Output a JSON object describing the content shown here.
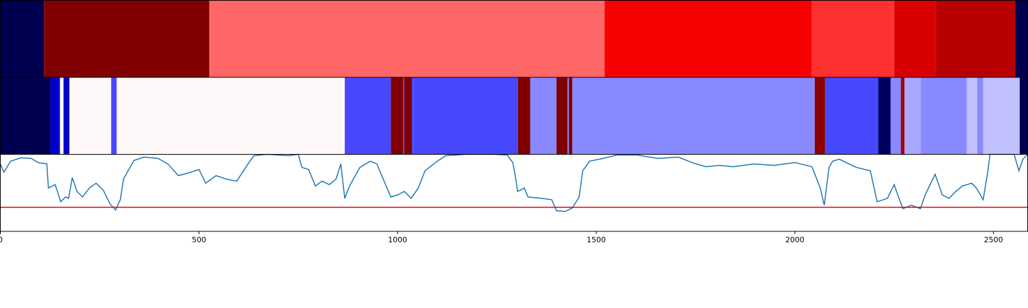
{
  "chart_data": {
    "type": "segmentation",
    "xlim": [
      0,
      2586
    ],
    "xticks": [
      0,
      500,
      1000,
      1500,
      2000,
      2500
    ],
    "bands": [
      {
        "bounds": [
          0,
          110,
          526,
          1521,
          2043,
          2250,
          2355,
          2555,
          2586
        ],
        "colors": [
          "#000050",
          "#800000",
          "#ff6666",
          "#f60000",
          "#ff3030",
          "#d80000",
          "#b80000",
          "#000050"
        ]
      },
      {
        "bounds": [
          0,
          126,
          150,
          159,
          174,
          279,
          293,
          867,
          983,
          1014,
          1017,
          1036,
          1040,
          1303,
          1334,
          1400,
          1428,
          1431,
          1440,
          2050,
          2076,
          2210,
          2241,
          2267,
          2276,
          2317,
          2433,
          2459,
          2474,
          2566,
          2586
        ],
        "colors": [
          "#000050",
          "#0000cc",
          "#fff8f8",
          "#0000cc",
          "#fff8f8",
          "#4848ff",
          "#fff8f8",
          "#4848ff",
          "#800000",
          "#4848ff",
          "#800000",
          "#4848ff",
          "#4848ff",
          "#800000",
          "#8888ff",
          "#800000",
          "#8888ff",
          "#800000",
          "#8888ff",
          "#8b0000",
          "#4848ff",
          "#000060",
          "#8888ff",
          "#a00000",
          "#a8a8ff",
          "#8888ff",
          "#c0c0ff",
          "#8888ff",
          "#c0c0ff",
          "#000050"
        ]
      }
    ],
    "ylim": [
      0,
      112
    ],
    "hline": 35,
    "hline_color": "#ee0000",
    "series": [
      {
        "color": "#1f77b4",
        "x": [
          0,
          9,
          26,
          52,
          78,
          95,
          117,
          121,
          138,
          152,
          164,
          172,
          181,
          193,
          207,
          224,
          241,
          259,
          276,
          290,
          302,
          310,
          336,
          362,
          397,
          422,
          448,
          474,
          500,
          517,
          543,
          569,
          595,
          621,
          638,
          672,
          724,
          750,
          759,
          776,
          793,
          810,
          828,
          845,
          857,
          867,
          879,
          905,
          931,
          948,
          966,
          983,
          1000,
          1017,
          1034,
          1052,
          1069,
          1095,
          1121,
          1172,
          1241,
          1276,
          1290,
          1297,
          1302,
          1319,
          1328,
          1362,
          1388,
          1400,
          1422,
          1440,
          1457,
          1466,
          1483,
          1517,
          1552,
          1603,
          1655,
          1707,
          1741,
          1776,
          1810,
          1845,
          1897,
          1948,
          2000,
          2043,
          2064,
          2074,
          2086,
          2095,
          2112,
          2129,
          2155,
          2190,
          2207,
          2233,
          2250,
          2259,
          2272,
          2293,
          2316,
          2328,
          2353,
          2371,
          2388,
          2405,
          2422,
          2445,
          2457,
          2474,
          2486,
          2491,
          2552,
          2564,
          2574,
          2586
        ],
        "values": [
          98,
          86,
          102,
          107,
          106,
          100,
          98,
          63,
          68,
          43,
          50,
          48,
          78,
          58,
          50,
          63,
          70,
          60,
          40,
          31,
          46,
          76,
          103,
          108,
          106,
          98,
          81,
          85,
          90,
          70,
          81,
          76,
          73,
          96,
          110,
          112,
          110,
          112,
          93,
          90,
          66,
          73,
          68,
          76,
          98,
          48,
          66,
          93,
          102,
          98,
          73,
          50,
          53,
          58,
          48,
          63,
          88,
          100,
          110,
          112,
          112,
          111,
          100,
          78,
          58,
          63,
          50,
          48,
          46,
          30,
          29,
          34,
          50,
          88,
          102,
          106,
          111,
          111,
          106,
          108,
          100,
          94,
          96,
          94,
          98,
          96,
          100,
          94,
          63,
          38,
          93,
          102,
          105,
          100,
          93,
          88,
          43,
          48,
          68,
          53,
          33,
          38,
          33,
          53,
          83,
          53,
          48,
          58,
          66,
          70,
          63,
          46,
          88,
          112,
          112,
          88,
          105,
          112
        ]
      }
    ]
  }
}
